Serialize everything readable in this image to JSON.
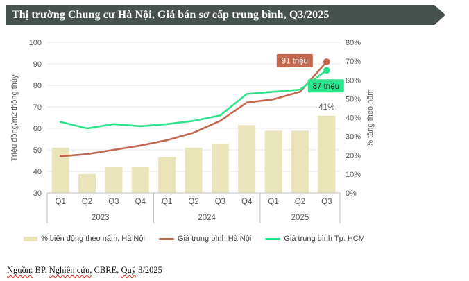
{
  "header": {
    "title": "Thị trường Chung cư Hà Nội, Giá bán sơ cấp trung bình, Q3/2025"
  },
  "colors": {
    "title_bar": "#46524e",
    "bar_fill": "#e9e4ba",
    "hanoi_line": "#c4674f",
    "hcm_line": "#2de38c",
    "gridline": "#e8e8e8",
    "axis_line": "#c0c0c0",
    "tick_text": "#595959",
    "callout_hanoi_text": "#ffffff",
    "callout_hcm_text": "#1a1a1a"
  },
  "chart_data": {
    "type": "combo-bar-line",
    "categories": [
      "Q1",
      "Q2",
      "Q3",
      "Q4",
      "Q1",
      "Q2",
      "Q3",
      "Q4",
      "Q1",
      "Q2",
      "Q3"
    ],
    "year_groups": [
      {
        "label": "2023",
        "count": 4
      },
      {
        "label": "2024",
        "count": 4
      },
      {
        "label": "2025",
        "count": 3
      }
    ],
    "series": [
      {
        "name": "% biến động theo năm, Hà Nội",
        "type": "bar",
        "axis": "right",
        "values": [
          24,
          10,
          14,
          14,
          19,
          24,
          26,
          36,
          33,
          33,
          41
        ]
      },
      {
        "name": "Giá trung bình Hà Nội",
        "type": "line",
        "axis": "left",
        "values": [
          47,
          48,
          50,
          52,
          54.5,
          58,
          63.5,
          72,
          73.5,
          77,
          91
        ]
      },
      {
        "name": "Giá trung bình Tp. HCM",
        "type": "line",
        "axis": "left",
        "values": [
          63,
          60,
          62,
          61,
          62,
          63.5,
          66,
          76,
          77,
          78,
          87
        ]
      }
    ],
    "left_axis": {
      "label": "Triệu đồng/m2 thông thủy",
      "min": 30,
      "max": 100,
      "step": 10,
      "ticks": [
        "30",
        "40",
        "50",
        "60",
        "70",
        "80",
        "90",
        "100"
      ]
    },
    "right_axis": {
      "label": "% tăng theo năm",
      "min": 0,
      "max": 80,
      "step": 10,
      "ticks": [
        "0%",
        "10%",
        "20%",
        "30%",
        "40%",
        "50%",
        "60%",
        "70%",
        "80%"
      ]
    },
    "grid": true,
    "annotations": [
      {
        "text": "91 triệu",
        "series": 1,
        "point": 10,
        "style": "callout-hanoi"
      },
      {
        "text": "87 triệu",
        "series": 2,
        "point": 10,
        "style": "callout-hcm"
      },
      {
        "text": "41%",
        "series": 0,
        "point": 10,
        "style": "bar-label"
      }
    ]
  },
  "legend": {
    "items": [
      {
        "label": "% biến động theo năm, Hà Nội",
        "swatch": "bar"
      },
      {
        "label": "Giá trung bình Hà Nội",
        "swatch": "line-hanoi"
      },
      {
        "label": "Giá trung bình Tp. HCM",
        "swatch": "line-hcm"
      }
    ]
  },
  "footer": {
    "segments": [
      {
        "text": "Nguồn:",
        "spellcheck": true
      },
      {
        "text": " BP. ",
        "spellcheck": false
      },
      {
        "text": "Nghiên cứu,",
        "spellcheck": true
      },
      {
        "text": " CBRE, ",
        "spellcheck": false
      },
      {
        "text": "Quý",
        "spellcheck": true
      },
      {
        "text": " 3/2025",
        "spellcheck": false
      }
    ]
  }
}
